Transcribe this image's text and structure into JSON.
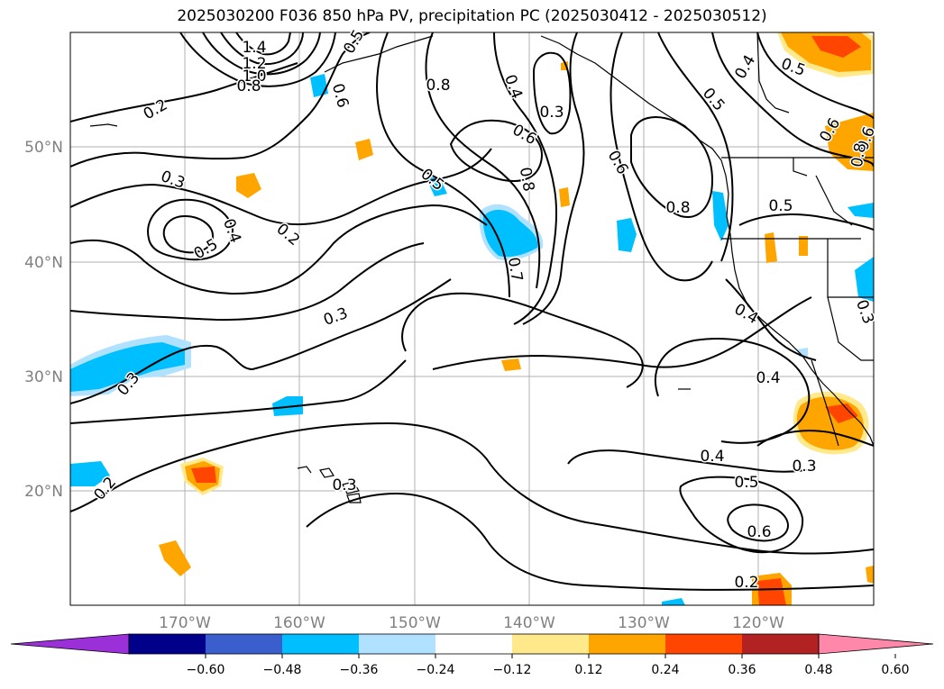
{
  "title": "2025030200 F036 850 hPa PV, precipitation PC (2025030412 - 2025030512)",
  "lat_labels": [
    "50°N",
    "40°N",
    "30°N",
    "20°N"
  ],
  "lon_labels": [
    "170°W",
    "160°W",
    "150°W",
    "140°W",
    "130°W",
    "120°W"
  ],
  "colorbar": {
    "ticks": [
      "−0.60",
      "−0.48",
      "−0.36",
      "−0.24",
      "−0.12",
      "0.12",
      "0.24",
      "0.36",
      "0.48",
      "0.60"
    ],
    "colors": [
      "#9b30d9",
      "#00008b",
      "#3a5fcd",
      "#00bfff",
      "#b0e2ff",
      "#ffffff",
      "#ffe98a",
      "#ffa500",
      "#ff4500",
      "#b22222",
      "#ff88aa"
    ]
  },
  "contour_labels": [
    "1.4",
    "1.2",
    "1.0",
    "0.8",
    "0.5",
    "0.6",
    "0.2",
    "0.8",
    "0.3",
    "0.4",
    "0.6",
    "0.8",
    "0.5",
    "0.4",
    "0.6",
    "0.5",
    "0.6",
    "0.8",
    "0.3",
    "0.4",
    "0.5",
    "0.2",
    "0.5",
    "0.7",
    "0.6",
    "0.8",
    "0.5",
    "0.3",
    "0.4",
    "0.3",
    "0.4",
    "0.3",
    "0.3",
    "0.2",
    "0.4",
    "0.5",
    "0.6",
    "0.2",
    "0.3"
  ],
  "colors": {
    "contour": "#000000",
    "grid": "#b0b0b0",
    "coast": "#000000"
  }
}
